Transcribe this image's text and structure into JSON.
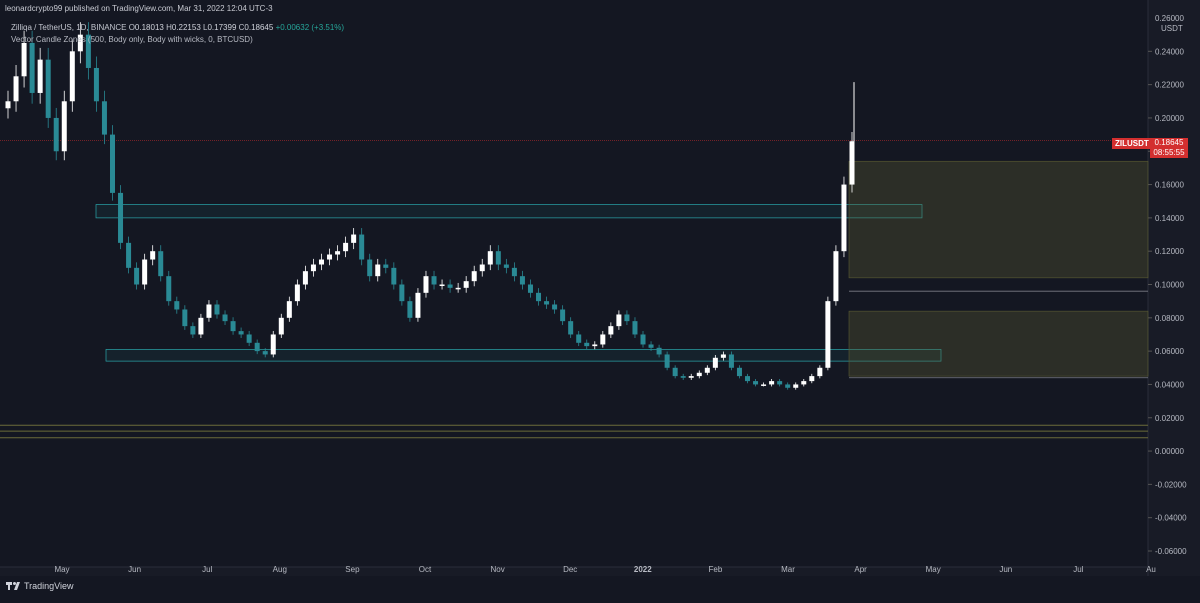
{
  "header": {
    "published": "leonardcrypto99 published on TradingView.com, Mar 31, 2022 12:04 UTC-3",
    "symbol": "Zilliqa / TetherUS, 1D, BINANCE",
    "o_label": "O",
    "o_value": "0.18013",
    "h_label": "H",
    "h_value": "0.22153",
    "l_label": "L",
    "l_value": "0.17399",
    "c_label": "C",
    "c_value": "0.18645",
    "change": "+0.00632 (+3.51%)",
    "indicator": "Vector Candle Zones (500, Body only, Body with wicks, 0, BTCUSD)"
  },
  "price_axis": {
    "currency": "USDT",
    "current_symbol": "ZILUSDT",
    "current_price": "0.18645",
    "countdown": "08:55:55"
  },
  "footer": {
    "brand": "TradingView"
  },
  "colors": {
    "background": "#141722",
    "axis_panel": "#181b26",
    "up_candle": "#ffffff",
    "down_candle": "#2a8a95",
    "zone_cyan": "#2aa6ac",
    "zone_olive": "#4a4a2a",
    "price_line": "#d32f2f",
    "text": "#b7bac3"
  },
  "chart_data": {
    "type": "line",
    "series": [
      {
        "values": [
          0.21,
          0.225,
          0.245,
          0.215,
          0.235,
          0.2,
          0.18,
          0.21,
          0.24,
          0.25,
          0.23,
          0.21,
          0.19,
          0.155,
          0.125,
          0.11,
          0.1,
          0.115,
          0.12,
          0.105,
          0.09,
          0.085,
          0.075,
          0.07,
          0.08,
          0.088,
          0.082,
          0.078,
          0.072,
          0.07,
          0.065,
          0.06,
          0.058,
          0.07,
          0.08,
          0.09,
          0.1,
          0.108,
          0.112,
          0.115,
          0.118,
          0.12,
          0.125,
          0.13,
          0.115,
          0.105,
          0.112,
          0.11,
          0.1,
          0.09,
          0.08,
          0.095,
          0.105,
          0.1,
          0.1,
          0.098,
          0.098,
          0.102,
          0.108,
          0.112,
          0.12,
          0.112,
          0.11,
          0.105,
          0.1,
          0.095,
          0.09,
          0.088,
          0.085,
          0.078,
          0.07,
          0.065,
          0.063,
          0.064,
          0.07,
          0.075,
          0.082,
          0.078,
          0.07,
          0.064,
          0.062,
          0.058,
          0.05,
          0.045,
          0.044,
          0.045,
          0.047,
          0.05,
          0.056,
          0.058,
          0.05,
          0.045,
          0.042,
          0.04,
          0.04,
          0.042,
          0.04,
          0.038,
          0.04,
          0.042,
          0.045,
          0.05,
          0.09,
          0.12,
          0.16,
          0.186
        ],
        "name": ""
      }
    ],
    "x_start": "2021-04-16",
    "x_step_days": 3.4,
    "ylim": [
      -0.06,
      0.26
    ],
    "y_ticks": [
      "0.24000",
      "0.22000",
      "0.20000",
      "0.18000",
      "0.16000",
      "0.14000",
      "0.12000",
      "0.10000",
      "0.08000",
      "0.06000",
      "0.04000",
      "0.02000",
      "0.00000",
      "-0.02000",
      "-0.04000",
      "-0.06000"
    ],
    "y_tick_top_partial": "0.26000",
    "x_ticks": [
      "May",
      "Jun",
      "Jul",
      "Aug",
      "Sep",
      "Oct",
      "Nov",
      "Dec",
      "2022",
      "Feb",
      "Mar",
      "Apr",
      "May",
      "Jun",
      "Jul",
      "Au"
    ],
    "zones": [
      {
        "color": "cyan",
        "from": 0.14,
        "to": 0.148
      },
      {
        "color": "cyan",
        "from": 0.054,
        "to": 0.061
      },
      {
        "color": "olive",
        "from": 0.104,
        "to": 0.174
      },
      {
        "color": "olive",
        "from": 0.045,
        "to": 0.084
      },
      {
        "color": "olive-line",
        "from": 0.0155,
        "to": 0.0155
      },
      {
        "color": "olive-line",
        "from": 0.012,
        "to": 0.012
      },
      {
        "color": "olive-line",
        "from": 0.008,
        "to": 0.008
      },
      {
        "color": "gray-line",
        "from": 0.096,
        "to": 0.096
      },
      {
        "color": "gray-line",
        "from": 0.044,
        "to": 0.044
      }
    ],
    "title": "",
    "xlabel": "",
    "ylabel": ""
  }
}
